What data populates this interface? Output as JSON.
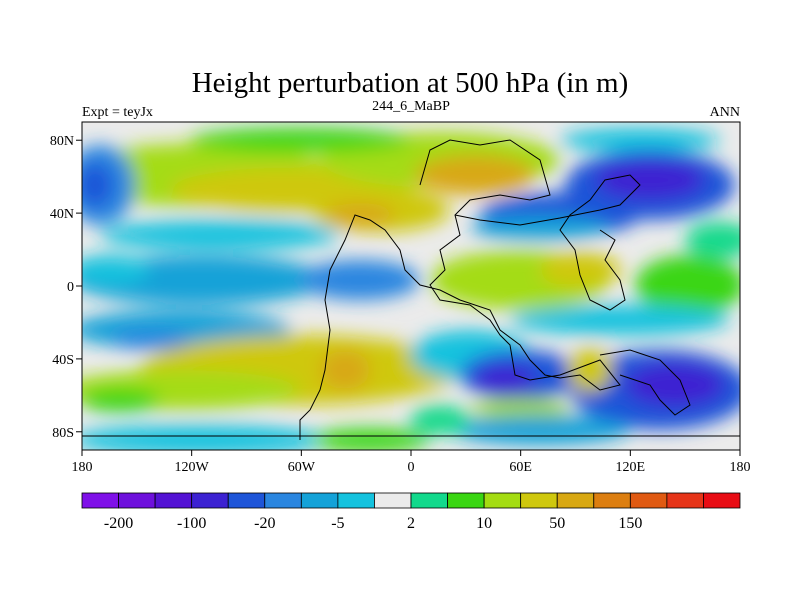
{
  "chart_data": {
    "type": "heatmap",
    "title": "Height perturbation at 500 hPa (in m)",
    "subtitle_left": "Expt = teyJx",
    "subtitle_center": "244_6_MaBP",
    "subtitle_right": "ANN",
    "x_range": [
      -180,
      180
    ],
    "y_range": [
      -90,
      90
    ],
    "x_ticks": [
      {
        "value": -180,
        "label": "180"
      },
      {
        "value": -120,
        "label": "120W"
      },
      {
        "value": -60,
        "label": "60W"
      },
      {
        "value": 0,
        "label": "0"
      },
      {
        "value": 60,
        "label": "60E"
      },
      {
        "value": 120,
        "label": "120E"
      },
      {
        "value": 180,
        "label": "180"
      }
    ],
    "y_ticks": [
      {
        "value": 80,
        "label": "80N"
      },
      {
        "value": 40,
        "label": "40N"
      },
      {
        "value": 0,
        "label": "0"
      },
      {
        "value": -40,
        "label": "40S"
      },
      {
        "value": -80,
        "label": "80S"
      }
    ],
    "colorbar": {
      "colors": [
        "#7f10e8",
        "#6e10dc",
        "#5312d4",
        "#3c22d2",
        "#1e55d8",
        "#2a86e0",
        "#14a2d8",
        "#14c2de",
        "#ebebeb",
        "#12d98c",
        "#3ad612",
        "#a4dc12",
        "#cfc80e",
        "#d8a812",
        "#dc7e10",
        "#e05a12",
        "#e63418",
        "#e80c14"
      ],
      "labels": [
        {
          "boundary": 1,
          "text": "-200"
        },
        {
          "boundary": 3,
          "text": "-100"
        },
        {
          "boundary": 5,
          "text": "-20"
        },
        {
          "boundary": 7,
          "text": "-5"
        },
        {
          "boundary": 9,
          "text": "2"
        },
        {
          "boundary": 11,
          "text": "10"
        },
        {
          "boundary": 13,
          "text": "50"
        },
        {
          "boundary": 15,
          "text": "150"
        }
      ]
    }
  }
}
